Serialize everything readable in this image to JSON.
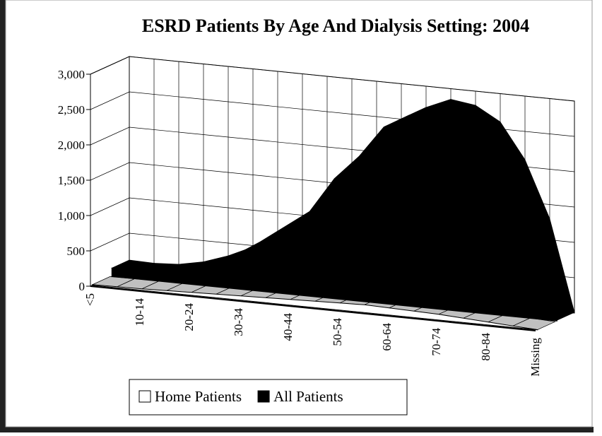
{
  "chart_data": {
    "type": "area3d",
    "title": "ESRD Patients By Age And Dialysis Setting: 2004",
    "categories": [
      "<5",
      null,
      "10-14",
      null,
      "20-24",
      null,
      "30-34",
      null,
      "40-44",
      null,
      "50-54",
      null,
      "60-64",
      null,
      "70-74",
      null,
      "80-84",
      null,
      "Missing"
    ],
    "series": [
      {
        "name": "Home Patients",
        "color": "#ffffff",
        "values": [
          10,
          15,
          20,
          30,
          40,
          50,
          60,
          70,
          80,
          90,
          100,
          110,
          100,
          90,
          80,
          60,
          40,
          20,
          2
        ]
      },
      {
        "name": "All Patients",
        "color": "#000000",
        "values": [
          120,
          110,
          130,
          200,
          320,
          480,
          700,
          950,
          1200,
          1700,
          2050,
          2500,
          2700,
          2850,
          2800,
          2600,
          2100,
          1300,
          10
        ]
      }
    ],
    "ylim": [
      0,
      3000
    ],
    "yticks": [
      0,
      500,
      {
        "value": 1000,
        "label": "1,000"
      },
      {
        "value": 1500,
        "label": "1,500"
      },
      {
        "value": 2000,
        "label": "2,000"
      },
      {
        "value": 2500,
        "label": "2,500"
      },
      {
        "value": 3000,
        "label": "3,000"
      }
    ],
    "grid": true,
    "legend": "bottom"
  }
}
